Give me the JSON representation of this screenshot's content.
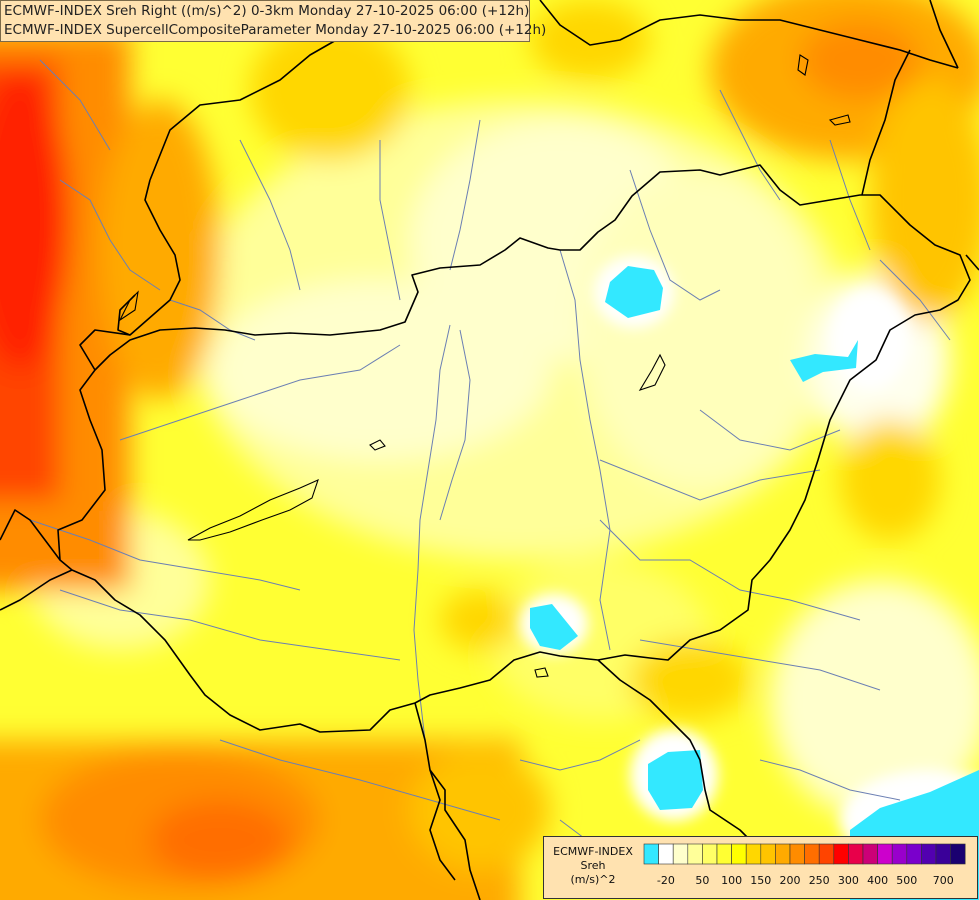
{
  "header": {
    "line1": "ECMWF-INDEX Sreh Right ((m/s)^2) 0-3km Monday 27-10-2025 06:00 (+12h)",
    "line2": "ECMWF-INDEX SupercellCompositeParameter Monday 27-10-2025 06:00 (+12h)"
  },
  "legend": {
    "line1": "ECMWF-INDEX",
    "line2": "Sreh",
    "line3": "(m/s)^2",
    "colors": [
      "#33e8ff",
      "#ffffff",
      "#ffffcc",
      "#ffff99",
      "#ffff66",
      "#ffff33",
      "#ffff00",
      "#ffd700",
      "#ffc400",
      "#ffaa00",
      "#ff8c00",
      "#ff6e00",
      "#ff4400",
      "#ff0000",
      "#e8004a",
      "#cc0077",
      "#cc00cc",
      "#9900cc",
      "#7a00cc",
      "#5200b0",
      "#3a0099",
      "#1a0070"
    ],
    "ticks": [
      "-20",
      "50",
      "100",
      "150",
      "200",
      "250",
      "300",
      "400",
      "500",
      "700"
    ]
  }
}
